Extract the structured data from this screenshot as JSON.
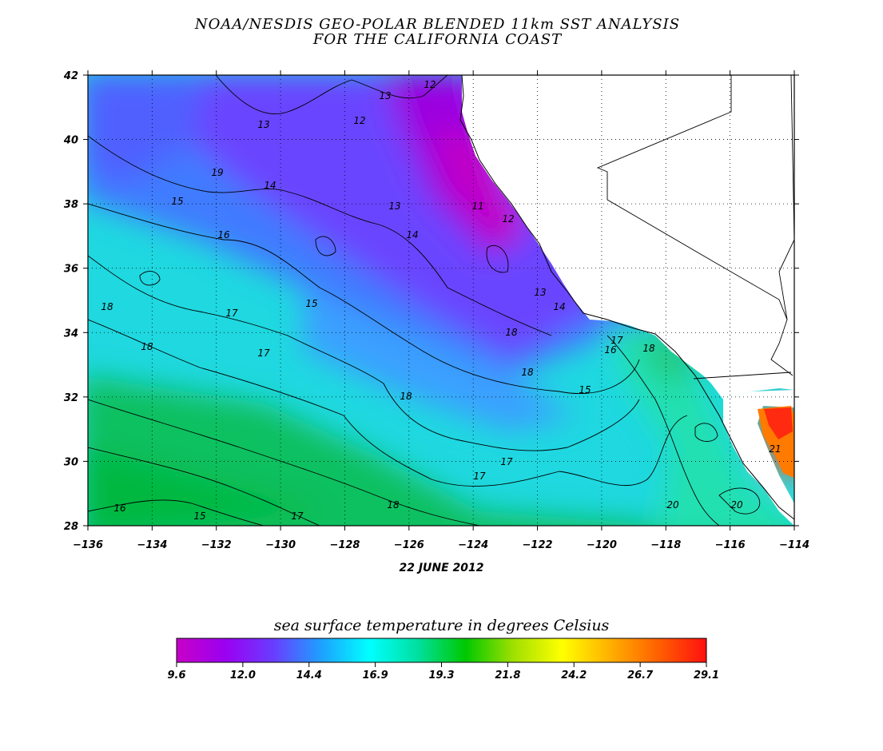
{
  "title_line1": "NOAA/NESDIS GEO-POLAR BLENDED 11km SST ANALYSIS",
  "title_line2": "FOR THE CALIFORNIA COAST",
  "date_label": "22 JUNE 2012",
  "colorbar_title": "sea surface temperature in degrees Celsius",
  "colorbar_ticks": [
    "9.6",
    "12.0",
    "14.4",
    "16.9",
    "19.3",
    "21.8",
    "24.2",
    "26.7",
    "29.1"
  ],
  "colorbar_colors": [
    "#c800c8",
    "#9b00f0",
    "#6a3cff",
    "#1ea0ff",
    "#00ffff",
    "#00e0a0",
    "#00c800",
    "#a0e000",
    "#ffff00",
    "#ffb000",
    "#ff6000",
    "#ff1010"
  ],
  "map": {
    "lon_range": [
      -136,
      -114
    ],
    "lat_range": [
      28,
      42
    ],
    "lon_ticks": [
      "−136",
      "−134",
      "−132",
      "−130",
      "−128",
      "−126",
      "−124",
      "−122",
      "−120",
      "−118",
      "−116",
      "−114"
    ],
    "lat_ticks": [
      "42",
      "40",
      "38",
      "36",
      "34",
      "32",
      "30",
      "28"
    ],
    "land_color": "#ffffff",
    "grid": "dotted"
  },
  "contour_labels": [
    "13",
    "12",
    "13",
    "12",
    "11",
    "12",
    "13",
    "14",
    "15",
    "14",
    "16",
    "15",
    "17",
    "18",
    "18",
    "17",
    "18",
    "15",
    "16",
    "17",
    "18",
    "13",
    "14",
    "17",
    "16",
    "15",
    "17",
    "18",
    "20",
    "20",
    "19",
    "18",
    "18",
    "17",
    "21"
  ]
}
